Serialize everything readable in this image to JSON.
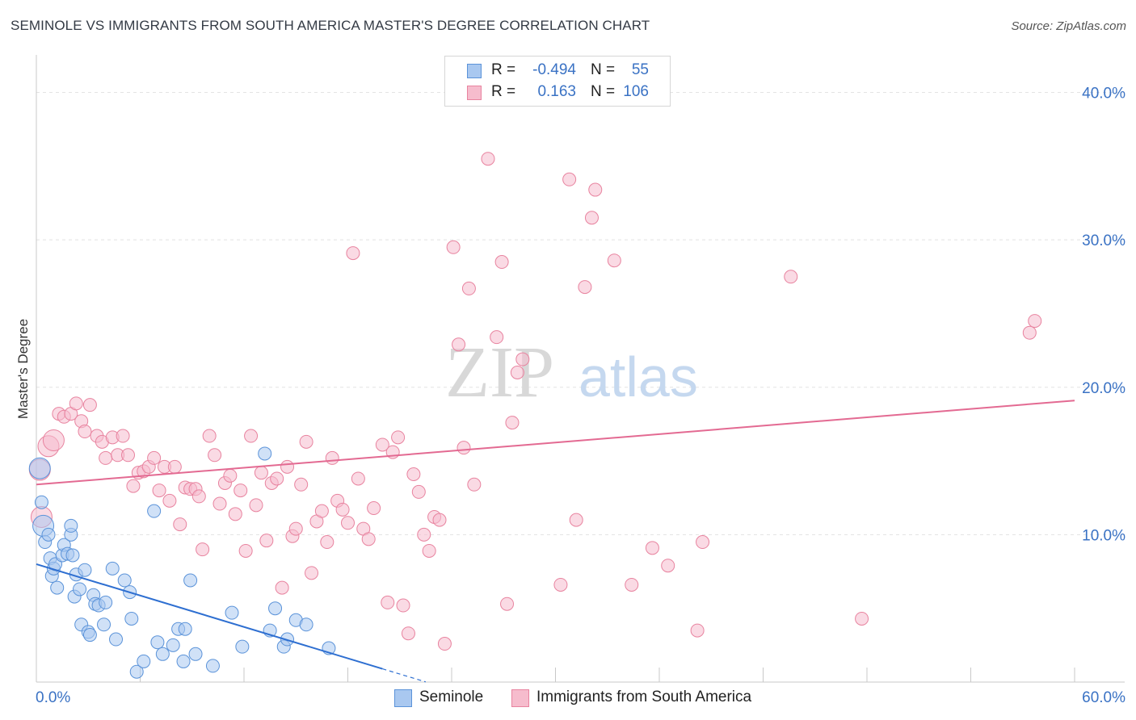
{
  "title": "SEMINOLE VS IMMIGRANTS FROM SOUTH AMERICA MASTER'S DEGREE CORRELATION CHART",
  "source": "Source: ZipAtlas.com",
  "watermark": {
    "zip": "ZIP",
    "atlas": "atlas"
  },
  "legend": [
    {
      "r_label": "R =",
      "r_value": "-0.494",
      "n_label": "N =",
      "n_value": "55"
    },
    {
      "r_label": "R =",
      "r_value": "0.163",
      "n_label": "N =",
      "n_value": "106"
    }
  ],
  "chart_data": {
    "type": "scatter",
    "title": "SEMINOLE VS IMMIGRANTS FROM SOUTH AMERICA MASTER'S DEGREE CORRELATION CHART",
    "xlabel": "",
    "ylabel": "Master's Degree",
    "xlim": [
      0,
      60
    ],
    "ylim": [
      0,
      42
    ],
    "x_tick_labels": [
      "0.0%",
      "60.0%"
    ],
    "y_ticks": [
      10,
      20,
      30,
      40
    ],
    "y_tick_labels": [
      "10.0%",
      "20.0%",
      "30.0%",
      "40.0%"
    ],
    "grid": true,
    "legend_position": "top-center",
    "series": [
      {
        "name": "Seminole",
        "color": "#a9c8f0",
        "stroke": "#5b93d9",
        "line_color": "#2e6fd1",
        "r": -0.494,
        "n": 55,
        "trend": {
          "x": [
            0,
            20
          ],
          "y": [
            8.0,
            0.9
          ],
          "dashed_to_x": 22.5
        },
        "points": [
          [
            0.2,
            14.5
          ],
          [
            0.3,
            12.2
          ],
          [
            0.4,
            10.6
          ],
          [
            0.5,
            9.5
          ],
          [
            0.7,
            10.0
          ],
          [
            0.8,
            8.4
          ],
          [
            0.9,
            7.2
          ],
          [
            1.0,
            7.7
          ],
          [
            1.1,
            8.0
          ],
          [
            1.2,
            6.4
          ],
          [
            1.5,
            8.6
          ],
          [
            1.6,
            9.3
          ],
          [
            1.8,
            8.7
          ],
          [
            2.0,
            10.0
          ],
          [
            2.0,
            10.6
          ],
          [
            2.1,
            8.6
          ],
          [
            2.2,
            5.8
          ],
          [
            2.3,
            7.3
          ],
          [
            2.5,
            6.3
          ],
          [
            2.6,
            3.9
          ],
          [
            2.8,
            7.6
          ],
          [
            3.0,
            3.4
          ],
          [
            3.1,
            3.2
          ],
          [
            3.3,
            5.9
          ],
          [
            3.4,
            5.3
          ],
          [
            3.6,
            5.2
          ],
          [
            3.9,
            3.9
          ],
          [
            4.0,
            5.4
          ],
          [
            4.4,
            7.7
          ],
          [
            4.6,
            2.9
          ],
          [
            5.1,
            6.9
          ],
          [
            5.4,
            6.1
          ],
          [
            5.5,
            4.3
          ],
          [
            5.8,
            0.7
          ],
          [
            6.2,
            1.4
          ],
          [
            6.8,
            11.6
          ],
          [
            7.0,
            2.7
          ],
          [
            7.3,
            1.9
          ],
          [
            7.9,
            2.5
          ],
          [
            8.2,
            3.6
          ],
          [
            8.5,
            1.4
          ],
          [
            8.6,
            3.6
          ],
          [
            8.9,
            6.9
          ],
          [
            9.2,
            1.9
          ],
          [
            10.2,
            1.1
          ],
          [
            11.3,
            4.7
          ],
          [
            11.9,
            2.4
          ],
          [
            13.2,
            15.5
          ],
          [
            13.5,
            3.5
          ],
          [
            13.8,
            5.0
          ],
          [
            14.3,
            2.4
          ],
          [
            14.5,
            2.9
          ],
          [
            15.0,
            4.2
          ],
          [
            15.6,
            3.9
          ],
          [
            16.9,
            2.3
          ]
        ]
      },
      {
        "name": "Immigrants from South America",
        "color": "#f6bccd",
        "stroke": "#e8839f",
        "line_color": "#e36a92",
        "r": 0.163,
        "n": 106,
        "trend": {
          "x": [
            0,
            60
          ],
          "y": [
            13.4,
            19.1
          ]
        },
        "points": [
          [
            0.2,
            14.4
          ],
          [
            0.3,
            11.2
          ],
          [
            0.7,
            16.0
          ],
          [
            1.0,
            16.4
          ],
          [
            1.3,
            18.2
          ],
          [
            1.6,
            18.0
          ],
          [
            2.0,
            18.2
          ],
          [
            2.3,
            18.9
          ],
          [
            2.6,
            17.7
          ],
          [
            2.8,
            17.0
          ],
          [
            3.1,
            18.8
          ],
          [
            3.5,
            16.7
          ],
          [
            3.8,
            16.3
          ],
          [
            4.0,
            15.2
          ],
          [
            4.4,
            16.6
          ],
          [
            4.7,
            15.4
          ],
          [
            5.0,
            16.7
          ],
          [
            5.3,
            15.4
          ],
          [
            5.6,
            13.3
          ],
          [
            5.9,
            14.2
          ],
          [
            6.2,
            14.3
          ],
          [
            6.5,
            14.6
          ],
          [
            6.8,
            15.2
          ],
          [
            7.1,
            13.0
          ],
          [
            7.4,
            14.6
          ],
          [
            7.7,
            12.3
          ],
          [
            8.0,
            14.6
          ],
          [
            8.3,
            10.7
          ],
          [
            8.6,
            13.2
          ],
          [
            8.9,
            13.1
          ],
          [
            9.2,
            13.1
          ],
          [
            9.4,
            12.6
          ],
          [
            9.6,
            9.0
          ],
          [
            10.0,
            16.7
          ],
          [
            10.3,
            15.4
          ],
          [
            10.6,
            12.1
          ],
          [
            10.9,
            13.5
          ],
          [
            11.2,
            14.0
          ],
          [
            11.5,
            11.4
          ],
          [
            11.8,
            13.0
          ],
          [
            12.1,
            8.9
          ],
          [
            12.4,
            16.7
          ],
          [
            12.7,
            12.0
          ],
          [
            13.0,
            14.2
          ],
          [
            13.3,
            9.6
          ],
          [
            13.6,
            13.5
          ],
          [
            13.9,
            13.8
          ],
          [
            14.2,
            6.4
          ],
          [
            14.5,
            14.6
          ],
          [
            14.8,
            9.9
          ],
          [
            15.0,
            10.4
          ],
          [
            15.3,
            13.4
          ],
          [
            15.6,
            16.3
          ],
          [
            15.9,
            7.4
          ],
          [
            16.2,
            10.9
          ],
          [
            16.5,
            11.6
          ],
          [
            16.8,
            9.5
          ],
          [
            17.1,
            15.2
          ],
          [
            17.4,
            12.3
          ],
          [
            17.7,
            11.7
          ],
          [
            18.0,
            10.8
          ],
          [
            18.3,
            29.1
          ],
          [
            18.6,
            13.8
          ],
          [
            18.9,
            10.4
          ],
          [
            19.2,
            9.7
          ],
          [
            19.5,
            11.8
          ],
          [
            20.0,
            16.1
          ],
          [
            20.3,
            5.4
          ],
          [
            20.6,
            15.6
          ],
          [
            20.9,
            16.6
          ],
          [
            21.2,
            5.2
          ],
          [
            21.5,
            3.3
          ],
          [
            21.8,
            14.1
          ],
          [
            22.1,
            12.9
          ],
          [
            22.4,
            10.0
          ],
          [
            22.7,
            8.9
          ],
          [
            23.0,
            11.2
          ],
          [
            23.3,
            11.0
          ],
          [
            23.6,
            2.6
          ],
          [
            24.1,
            29.5
          ],
          [
            24.4,
            22.9
          ],
          [
            24.7,
            15.9
          ],
          [
            25.0,
            26.7
          ],
          [
            25.3,
            13.4
          ],
          [
            26.1,
            35.5
          ],
          [
            26.6,
            23.4
          ],
          [
            26.9,
            28.5
          ],
          [
            27.2,
            5.3
          ],
          [
            27.5,
            17.6
          ],
          [
            27.8,
            21.0
          ],
          [
            28.1,
            21.9
          ],
          [
            30.3,
            6.6
          ],
          [
            30.8,
            34.1
          ],
          [
            31.2,
            11.0
          ],
          [
            31.7,
            26.8
          ],
          [
            32.1,
            31.5
          ],
          [
            32.3,
            33.4
          ],
          [
            33.4,
            28.6
          ],
          [
            34.4,
            6.6
          ],
          [
            35.6,
            9.1
          ],
          [
            36.5,
            7.9
          ],
          [
            38.2,
            3.5
          ],
          [
            38.5,
            9.5
          ],
          [
            43.6,
            27.5
          ],
          [
            47.7,
            4.3
          ],
          [
            57.4,
            23.7
          ],
          [
            57.7,
            24.5
          ]
        ]
      }
    ]
  }
}
